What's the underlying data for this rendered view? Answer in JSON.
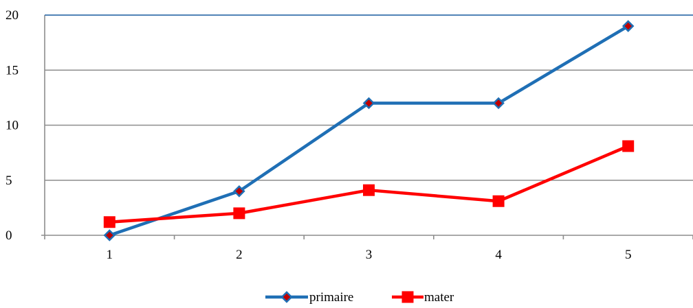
{
  "chart_data": {
    "type": "line",
    "title": "",
    "xlabel": "",
    "ylabel": "",
    "categories": [
      "1",
      "2",
      "3",
      "4",
      "5"
    ],
    "ylim": [
      0,
      20
    ],
    "yticks": [
      "0",
      "5",
      "10",
      "15",
      "20"
    ],
    "grid": true,
    "legend_position": "bottom",
    "series": [
      {
        "name": "primaire",
        "values": [
          0,
          4,
          12,
          12,
          19
        ],
        "color": "#1F6FB5",
        "marker": "diamond",
        "marker_fill": "#C00000"
      },
      {
        "name": "mater",
        "values": [
          1.2,
          2.0,
          4.1,
          3.1,
          8.1
        ],
        "color": "#FF0000",
        "marker": "square",
        "marker_fill": "#FF0000"
      }
    ]
  }
}
